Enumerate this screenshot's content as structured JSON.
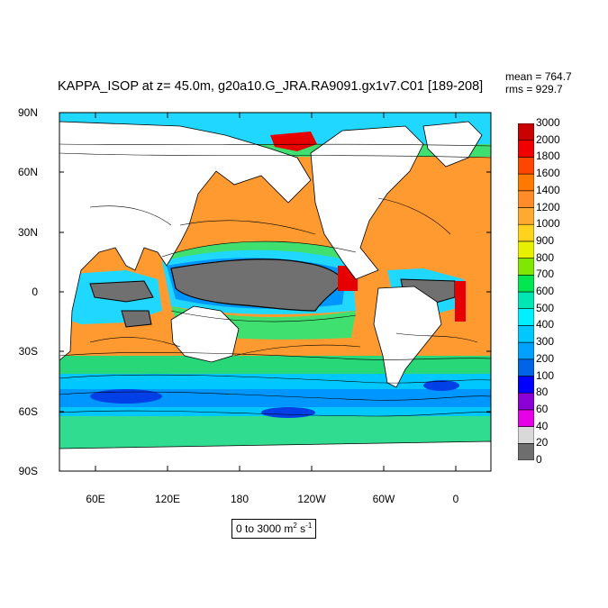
{
  "title": "KAPPA_ISOP at z=  45.0m, g20a10.G_JRA.RA9091.gx1v7.C01 [189-208]",
  "stats": {
    "mean_label": "mean = ",
    "mean_value": "764.7",
    "rms_label": "rms = ",
    "rms_value": "929.7"
  },
  "units": {
    "prefix": "0 to 3000 m",
    "exp1": "2",
    "mid": " s",
    "exp2": "-1"
  },
  "axes": {
    "lat_labels": [
      "90N",
      "60N",
      "30N",
      "0",
      "30S",
      "60S",
      "90S"
    ],
    "lon_labels": [
      "60E",
      "120E",
      "180",
      "120W",
      "60W",
      "0"
    ]
  },
  "colorbar": {
    "levels": [
      "0",
      "20",
      "40",
      "60",
      "80",
      "100",
      "200",
      "300",
      "400",
      "500",
      "600",
      "700",
      "800",
      "900",
      "1000",
      "1200",
      "1400",
      "1600",
      "1800",
      "2000",
      "3000"
    ],
    "colors": [
      "#6e6e6e",
      "#d9d9d9",
      "#e600e6",
      "#8b00d4",
      "#0000ff",
      "#0064e6",
      "#00a0ff",
      "#00c8ff",
      "#00f0ff",
      "#00e6b4",
      "#00e650",
      "#7ee600",
      "#e6f000",
      "#ffd21e",
      "#ffaa32",
      "#ff8c28",
      "#ff7800",
      "#ff4600",
      "#f00000",
      "#c80000"
    ]
  },
  "palette": {
    "land": "#ffffff",
    "frame": "#000000",
    "gray_zone": "#707070",
    "ocean_orange": "#ff9a30",
    "ocean_light_orange": "#ffb446",
    "ocean_green": "#40e070",
    "ocean_cyan": "#20d8ff",
    "ocean_blue": "#0096ff",
    "deep_blue": "#0040e6",
    "red": "#e60000"
  }
}
